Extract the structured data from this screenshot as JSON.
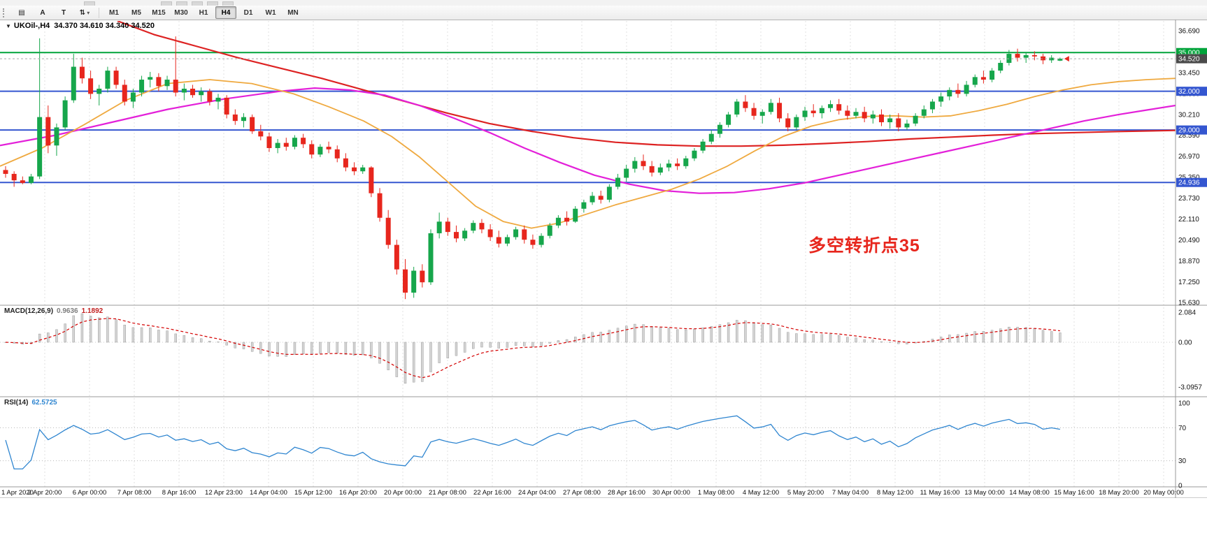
{
  "toolbar": {
    "tools": {
      "chart_button": "▤",
      "a_button": "A",
      "t_button": "T",
      "arrows_button": "⇅",
      "caret": "▾"
    },
    "timeframes": [
      "M1",
      "M5",
      "M15",
      "M30",
      "H1",
      "H4",
      "D1",
      "W1",
      "MN"
    ],
    "active_timeframe": "H4"
  },
  "chart": {
    "collapse_icon": "▼",
    "symbol_title": "UKOil-,H4",
    "ohlc": "34.370 34.610 34.340 34.520",
    "annotation": {
      "text": "多空转折点35",
      "color": "#e7261d"
    }
  },
  "macd_panel": {
    "name": "MACD(12,26,9)",
    "main_value": "0.9636",
    "signal_value": "1.1892"
  },
  "rsi_panel": {
    "name": "RSI(14)",
    "value": "62.5725"
  },
  "chart_data": {
    "type": "candlestick",
    "symbol": "UKOil",
    "timeframe": "H4",
    "open": 34.37,
    "high": 34.61,
    "low": 34.34,
    "close": 34.52,
    "y_ticks": [
      "36.690",
      "35.070",
      "33.450",
      "31.830",
      "30.210",
      "28.590",
      "26.970",
      "25.350",
      "23.730",
      "22.110",
      "20.490",
      "18.870",
      "17.250",
      "15.630"
    ],
    "h_lines": [
      {
        "label": "35.000",
        "price": 35.0,
        "color": "#00a33a",
        "style": "solid"
      },
      {
        "label": "34.520",
        "price": 34.52,
        "color": "#a8a8a8",
        "style": "dashed",
        "badge_color": "#4a4a4a"
      },
      {
        "label": "32.000",
        "price": 32.0,
        "color": "#3456d0",
        "style": "solid"
      },
      {
        "label": "29.000",
        "price": 29.0,
        "color": "#3456d0",
        "style": "solid"
      },
      {
        "label": "24.936",
        "price": 24.936,
        "color": "#3456d0",
        "style": "solid"
      }
    ],
    "x_labels": [
      "1 Apr 2020",
      "2 Apr 20:00",
      "6 Apr 00:00",
      "7 Apr 08:00",
      "8 Apr 16:00",
      "12 Apr 23:00",
      "14 Apr 04:00",
      "15 Apr 12:00",
      "16 Apr 20:00",
      "20 Apr 00:00",
      "21 Apr 08:00",
      "22 Apr 16:00",
      "24 Apr 04:00",
      "27 Apr 08:00",
      "28 Apr 16:00",
      "30 Apr 00:00",
      "1 May 08:00",
      "4 May 12:00",
      "5 May 20:00",
      "7 May 04:00",
      "8 May 12:00",
      "11 May 16:00",
      "13 May 00:00",
      "14 May 08:00",
      "15 May 16:00",
      "18 May 20:00",
      "20 May 00:00"
    ],
    "candles": [
      [
        25.9,
        26.2,
        25.3,
        25.6
      ],
      [
        25.6,
        25.8,
        24.6,
        25.1
      ],
      [
        25.1,
        25.4,
        24.8,
        24.9
      ],
      [
        24.9,
        25.6,
        24.8,
        25.4
      ],
      [
        25.4,
        36.1,
        25.2,
        30.0
      ],
      [
        30.0,
        30.9,
        27.2,
        27.8
      ],
      [
        27.8,
        29.5,
        27.0,
        29.2
      ],
      [
        29.2,
        31.6,
        29.0,
        31.3
      ],
      [
        31.3,
        34.9,
        31.1,
        33.9
      ],
      [
        33.9,
        34.6,
        32.6,
        33.0
      ],
      [
        33.0,
        33.6,
        31.4,
        31.8
      ],
      [
        31.8,
        32.5,
        30.9,
        32.2
      ],
      [
        32.2,
        33.9,
        31.9,
        33.6
      ],
      [
        33.6,
        33.9,
        32.2,
        32.5
      ],
      [
        32.5,
        32.9,
        30.9,
        31.2
      ],
      [
        31.2,
        32.2,
        30.7,
        31.9
      ],
      [
        31.9,
        33.2,
        31.6,
        32.9
      ],
      [
        32.9,
        33.5,
        32.3,
        33.1
      ],
      [
        33.1,
        33.4,
        32.0,
        32.4
      ],
      [
        32.4,
        33.2,
        32.1,
        32.9
      ],
      [
        32.9,
        36.25,
        31.6,
        31.9
      ],
      [
        31.9,
        32.6,
        31.3,
        32.2
      ],
      [
        32.2,
        32.5,
        31.5,
        31.7
      ],
      [
        31.7,
        32.3,
        31.2,
        32.0
      ],
      [
        32.0,
        32.2,
        30.9,
        31.2
      ],
      [
        31.2,
        31.8,
        30.6,
        31.5
      ],
      [
        31.5,
        31.7,
        29.9,
        30.2
      ],
      [
        30.2,
        30.6,
        29.4,
        29.7
      ],
      [
        29.7,
        30.3,
        29.2,
        30.0
      ],
      [
        30.0,
        30.2,
        28.7,
        28.9
      ],
      [
        28.9,
        29.4,
        28.2,
        28.5
      ],
      [
        28.5,
        28.8,
        27.3,
        27.6
      ],
      [
        27.6,
        28.3,
        27.2,
        28.0
      ],
      [
        28.0,
        28.4,
        27.4,
        27.7
      ],
      [
        27.7,
        28.6,
        27.5,
        28.4
      ],
      [
        28.4,
        28.7,
        27.6,
        27.9
      ],
      [
        27.9,
        28.2,
        26.8,
        27.1
      ],
      [
        27.1,
        27.9,
        26.9,
        27.7
      ],
      [
        27.7,
        28.1,
        27.2,
        27.5
      ],
      [
        27.5,
        27.8,
        26.5,
        26.8
      ],
      [
        26.8,
        27.2,
        25.8,
        26.1
      ],
      [
        26.1,
        26.5,
        25.5,
        25.8
      ],
      [
        25.8,
        26.3,
        25.6,
        26.1
      ],
      [
        26.1,
        26.2,
        23.8,
        24.1
      ],
      [
        24.1,
        24.5,
        21.9,
        22.2
      ],
      [
        22.2,
        22.8,
        19.8,
        20.1
      ],
      [
        20.1,
        20.5,
        17.8,
        18.2
      ],
      [
        18.2,
        19.0,
        15.9,
        16.4
      ],
      [
        16.4,
        18.4,
        16.0,
        18.1
      ],
      [
        18.1,
        18.6,
        16.8,
        17.2
      ],
      [
        17.2,
        21.3,
        17.0,
        21.0
      ],
      [
        21.0,
        22.6,
        20.6,
        21.9
      ],
      [
        21.9,
        22.2,
        20.8,
        21.1
      ],
      [
        21.1,
        21.6,
        20.3,
        20.6
      ],
      [
        20.6,
        21.4,
        20.4,
        21.2
      ],
      [
        21.2,
        22.0,
        21.0,
        21.8
      ],
      [
        21.8,
        22.1,
        21.0,
        21.3
      ],
      [
        21.3,
        21.7,
        20.4,
        20.7
      ],
      [
        20.7,
        21.2,
        19.9,
        20.2
      ],
      [
        20.2,
        20.9,
        20.0,
        20.7
      ],
      [
        20.7,
        21.5,
        20.5,
        21.3
      ],
      [
        21.3,
        21.6,
        20.2,
        20.5
      ],
      [
        20.5,
        20.9,
        19.8,
        20.1
      ],
      [
        20.1,
        21.0,
        19.9,
        20.8
      ],
      [
        20.8,
        21.8,
        20.6,
        21.6
      ],
      [
        21.6,
        22.4,
        21.4,
        22.2
      ],
      [
        22.2,
        22.7,
        21.6,
        21.9
      ],
      [
        21.9,
        23.1,
        21.8,
        22.9
      ],
      [
        22.9,
        23.6,
        22.6,
        23.4
      ],
      [
        23.4,
        24.2,
        23.2,
        23.9
      ],
      [
        23.9,
        24.3,
        23.3,
        23.6
      ],
      [
        23.6,
        24.8,
        23.4,
        24.6
      ],
      [
        24.6,
        25.6,
        24.4,
        25.3
      ],
      [
        25.3,
        26.3,
        25.0,
        26.0
      ],
      [
        26.0,
        26.9,
        25.7,
        26.6
      ],
      [
        26.6,
        27.1,
        25.9,
        26.2
      ],
      [
        26.2,
        26.6,
        25.4,
        25.7
      ],
      [
        25.7,
        26.4,
        25.5,
        26.1
      ],
      [
        26.1,
        26.7,
        25.8,
        26.4
      ],
      [
        26.4,
        26.8,
        25.9,
        26.2
      ],
      [
        26.2,
        27.0,
        26.0,
        26.8
      ],
      [
        26.8,
        27.6,
        26.6,
        27.4
      ],
      [
        27.4,
        28.3,
        27.2,
        28.1
      ],
      [
        28.1,
        29.0,
        27.9,
        28.7
      ],
      [
        28.7,
        29.6,
        28.4,
        29.4
      ],
      [
        29.4,
        30.4,
        29.2,
        30.2
      ],
      [
        30.2,
        31.4,
        30.0,
        31.2
      ],
      [
        31.2,
        31.7,
        30.4,
        30.7
      ],
      [
        30.7,
        31.1,
        29.8,
        30.1
      ],
      [
        30.1,
        30.6,
        29.5,
        30.4
      ],
      [
        30.4,
        31.4,
        30.2,
        31.1
      ],
      [
        31.1,
        31.5,
        29.6,
        29.9
      ],
      [
        29.9,
        30.3,
        28.9,
        29.2
      ],
      [
        29.2,
        30.2,
        29.0,
        30.0
      ],
      [
        30.0,
        30.8,
        29.7,
        30.5
      ],
      [
        30.5,
        31.0,
        30.0,
        30.3
      ],
      [
        30.3,
        30.9,
        29.9,
        30.7
      ],
      [
        30.7,
        31.3,
        30.4,
        31.0
      ],
      [
        31.0,
        31.4,
        30.2,
        30.5
      ],
      [
        30.5,
        30.9,
        29.8,
        30.1
      ],
      [
        30.1,
        30.7,
        29.9,
        30.4
      ],
      [
        30.4,
        30.8,
        29.6,
        29.9
      ],
      [
        29.9,
        30.5,
        29.5,
        30.2
      ],
      [
        30.2,
        30.6,
        29.3,
        29.6
      ],
      [
        29.6,
        30.2,
        29.1,
        29.9
      ],
      [
        29.9,
        30.3,
        28.9,
        29.2
      ],
      [
        29.2,
        29.8,
        29.0,
        29.5
      ],
      [
        29.5,
        30.3,
        29.3,
        30.1
      ],
      [
        30.1,
        30.9,
        29.9,
        30.6
      ],
      [
        30.6,
        31.4,
        30.3,
        31.2
      ],
      [
        31.2,
        31.9,
        30.8,
        31.6
      ],
      [
        31.6,
        32.3,
        31.3,
        32.1
      ],
      [
        32.1,
        32.6,
        31.5,
        31.8
      ],
      [
        31.8,
        32.8,
        31.6,
        32.5
      ],
      [
        32.5,
        33.3,
        32.3,
        33.1
      ],
      [
        33.1,
        33.6,
        32.6,
        32.9
      ],
      [
        32.9,
        33.8,
        32.7,
        33.6
      ],
      [
        33.6,
        34.4,
        33.4,
        34.2
      ],
      [
        34.2,
        35.2,
        34.0,
        34.9
      ],
      [
        34.9,
        35.3,
        34.3,
        34.6
      ],
      [
        34.6,
        35.0,
        34.2,
        34.8
      ],
      [
        34.8,
        35.1,
        34.4,
        34.7
      ],
      [
        34.7,
        34.9,
        34.1,
        34.4
      ],
      [
        34.4,
        34.8,
        34.2,
        34.6
      ],
      [
        34.37,
        34.61,
        34.34,
        34.52
      ]
    ],
    "moving_averages": [
      {
        "name": "slow-ma-red",
        "color": "#dd2222",
        "width": 2.2,
        "points": [
          [
            168,
            37.45
          ],
          [
            220,
            36.4
          ],
          [
            280,
            35.5
          ],
          [
            340,
            34.6
          ],
          [
            400,
            33.8
          ],
          [
            460,
            33.0
          ],
          [
            520,
            32.1
          ],
          [
            580,
            31.2
          ],
          [
            640,
            30.3
          ],
          [
            700,
            29.5
          ],
          [
            760,
            28.9
          ],
          [
            820,
            28.4
          ],
          [
            880,
            28.05
          ],
          [
            940,
            27.85
          ],
          [
            1000,
            27.75
          ],
          [
            1060,
            27.75
          ],
          [
            1120,
            27.82
          ],
          [
            1180,
            27.95
          ],
          [
            1240,
            28.1
          ],
          [
            1300,
            28.3
          ],
          [
            1360,
            28.45
          ],
          [
            1420,
            28.6
          ],
          [
            1480,
            28.72
          ],
          [
            1540,
            28.8
          ],
          [
            1600,
            28.88
          ],
          [
            1681,
            28.97
          ]
        ]
      },
      {
        "name": "medium-ma-magenta",
        "color": "#e320d9",
        "width": 2.2,
        "points": [
          [
            0,
            27.8
          ],
          [
            80,
            28.6
          ],
          [
            160,
            29.6
          ],
          [
            240,
            30.6
          ],
          [
            320,
            31.4
          ],
          [
            400,
            32.0
          ],
          [
            450,
            32.25
          ],
          [
            500,
            32.1
          ],
          [
            550,
            31.7
          ],
          [
            600,
            30.9
          ],
          [
            650,
            29.9
          ],
          [
            700,
            28.8
          ],
          [
            750,
            27.6
          ],
          [
            800,
            26.5
          ],
          [
            850,
            25.5
          ],
          [
            900,
            24.8
          ],
          [
            950,
            24.3
          ],
          [
            1000,
            24.1
          ],
          [
            1050,
            24.15
          ],
          [
            1100,
            24.45
          ],
          [
            1150,
            24.9
          ],
          [
            1200,
            25.5
          ],
          [
            1250,
            26.1
          ],
          [
            1300,
            26.7
          ],
          [
            1350,
            27.3
          ],
          [
            1400,
            27.9
          ],
          [
            1450,
            28.5
          ],
          [
            1500,
            29.1
          ],
          [
            1550,
            29.7
          ],
          [
            1600,
            30.2
          ],
          [
            1640,
            30.55
          ],
          [
            1681,
            30.9
          ]
        ]
      },
      {
        "name": "fast-ma-orange",
        "color": "#efa93f",
        "width": 1.8,
        "points": [
          [
            0,
            26.2
          ],
          [
            60,
            27.6
          ],
          [
            120,
            29.4
          ],
          [
            180,
            31.3
          ],
          [
            240,
            32.6
          ],
          [
            300,
            32.9
          ],
          [
            360,
            32.6
          ],
          [
            420,
            31.8
          ],
          [
            470,
            30.8
          ],
          [
            520,
            29.7
          ],
          [
            560,
            28.5
          ],
          [
            600,
            26.9
          ],
          [
            640,
            25.0
          ],
          [
            680,
            23.1
          ],
          [
            720,
            21.9
          ],
          [
            760,
            21.4
          ],
          [
            800,
            21.8
          ],
          [
            840,
            22.5
          ],
          [
            880,
            23.2
          ],
          [
            920,
            23.8
          ],
          [
            960,
            24.4
          ],
          [
            1000,
            25.2
          ],
          [
            1040,
            26.2
          ],
          [
            1080,
            27.4
          ],
          [
            1120,
            28.5
          ],
          [
            1160,
            29.3
          ],
          [
            1200,
            29.8
          ],
          [
            1240,
            30.05
          ],
          [
            1280,
            30.1
          ],
          [
            1320,
            30.0
          ],
          [
            1360,
            30.1
          ],
          [
            1400,
            30.5
          ],
          [
            1440,
            31.0
          ],
          [
            1480,
            31.6
          ],
          [
            1520,
            32.1
          ],
          [
            1560,
            32.5
          ],
          [
            1600,
            32.75
          ],
          [
            1640,
            32.9
          ],
          [
            1681,
            33.0
          ]
        ]
      }
    ],
    "macd": {
      "params": [
        12,
        26,
        9
      ],
      "main": 0.9636,
      "signal": 1.1892,
      "y_ticks": [
        "2.084",
        "0.00",
        "-3.0957"
      ]
    },
    "rsi": {
      "period": 14,
      "value": 62.5725,
      "levels": [
        "100",
        "70",
        "30",
        "0"
      ],
      "overbought": 70,
      "oversold": 30
    }
  }
}
